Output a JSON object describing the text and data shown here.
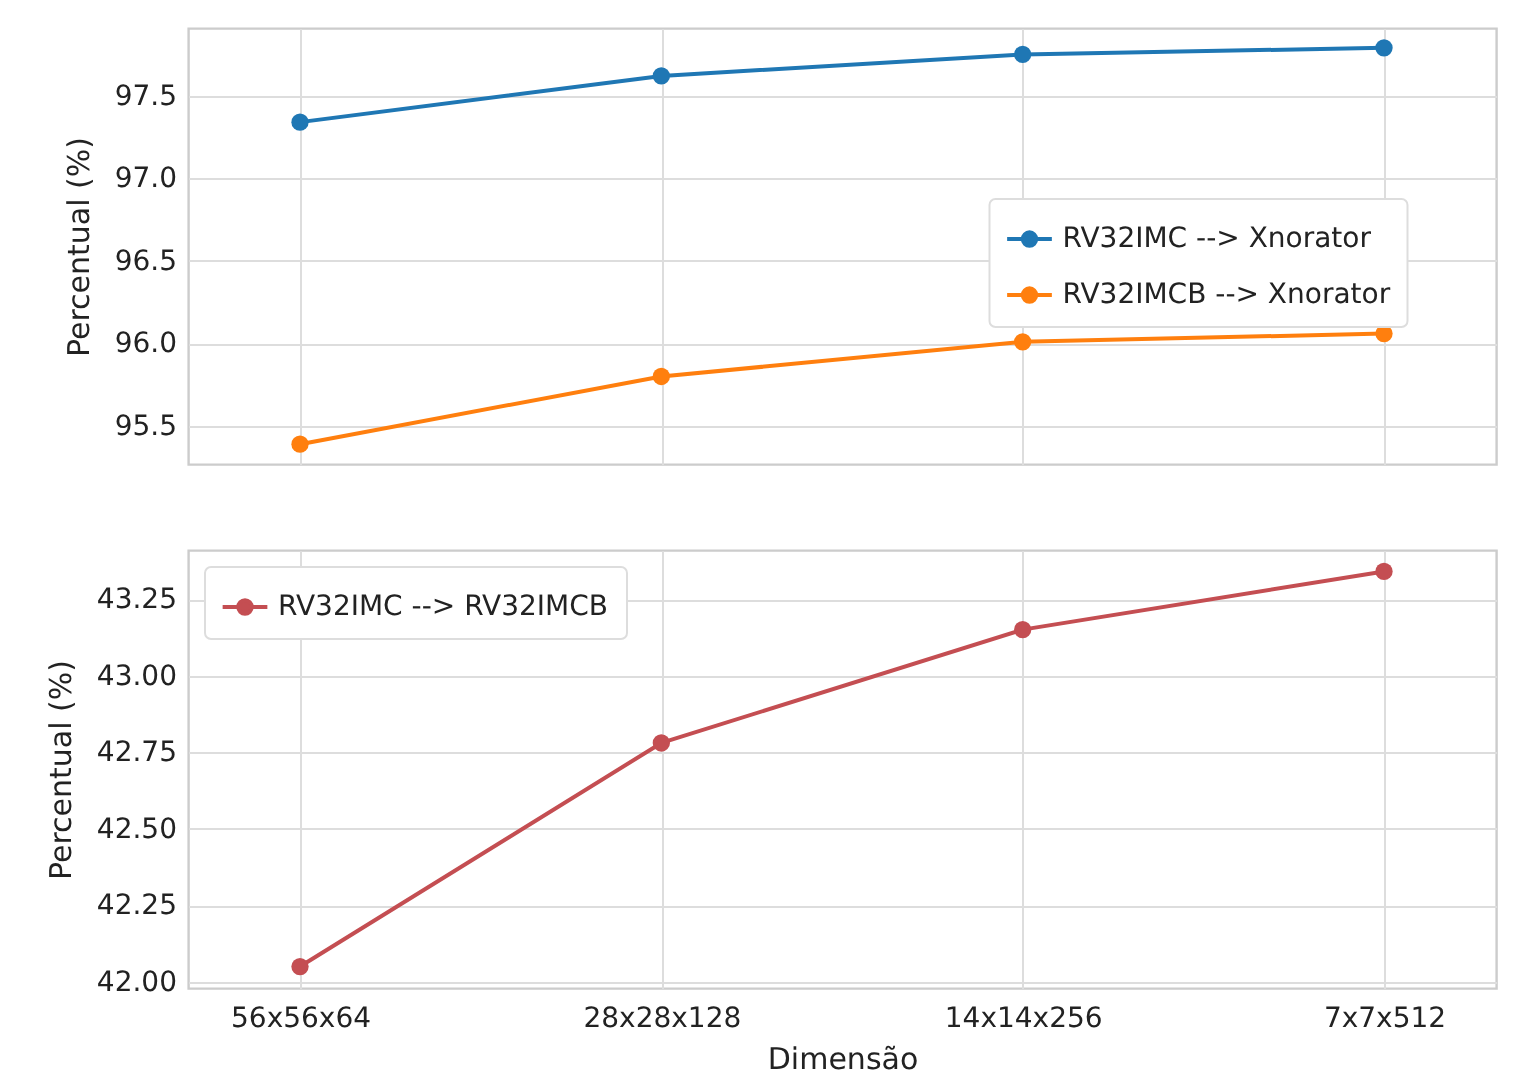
{
  "chart_data": [
    {
      "type": "line",
      "ylabel": "Percentual (%)",
      "categories": [
        null,
        null,
        null,
        null
      ],
      "series": [
        {
          "name": "RV32IMC   --> Xnorator",
          "color": "#1f77b4",
          "values": [
            97.34,
            97.62,
            97.75,
            97.79
          ]
        },
        {
          "name": "RV32IMCB --> Xnorator",
          "color": "#ff7f0e",
          "values": [
            95.39,
            95.8,
            96.01,
            96.06
          ]
        }
      ],
      "ylim": [
        95.27,
        97.91
      ],
      "yticks": [
        95.5,
        {
          "value": 96,
          "label": "96.0"
        },
        96.5,
        {
          "value": 97,
          "label": "97.0"
        },
        97.5
      ],
      "grid": true,
      "legend": "right",
      "marker": "circle"
    },
    {
      "type": "line",
      "xlabel": "Dimensão",
      "ylabel": "Percentual (%)",
      "categories": [
        "56x56x64",
        "28x28x128",
        "14x14x256",
        "7x7x512"
      ],
      "series": [
        {
          "name": "RV32IMC --> RV32IMCB",
          "color": "#c44e52",
          "values": [
            42.05,
            42.78,
            43.15,
            43.34
          ]
        }
      ],
      "ylim": [
        41.98,
        43.41
      ],
      "yticks": [
        {
          "value": 42,
          "label": "42.00"
        },
        42.25,
        {
          "value": 42.5,
          "label": "42.50"
        },
        42.75,
        {
          "value": 43,
          "label": "43.00"
        },
        43.25
      ],
      "grid": true,
      "legend": "top left",
      "marker": "circle"
    }
  ]
}
